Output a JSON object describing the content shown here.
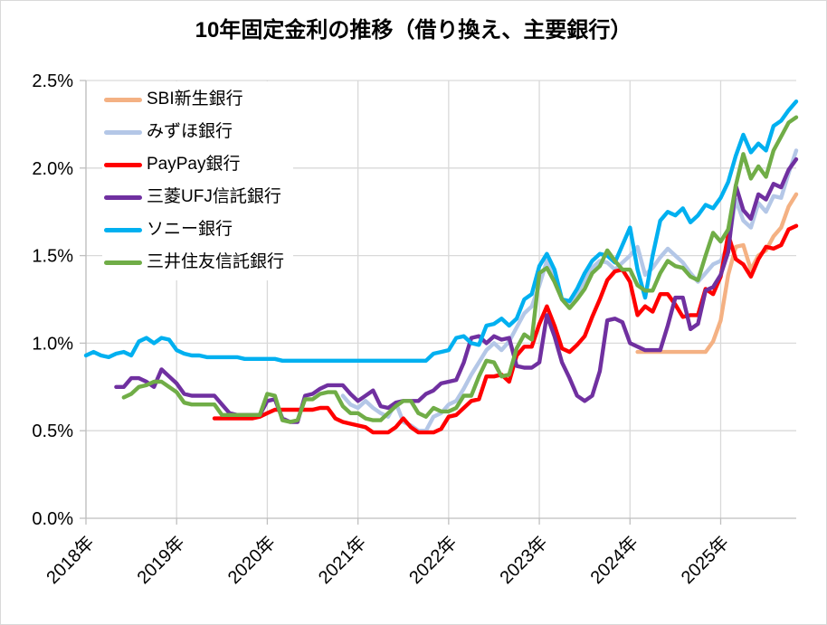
{
  "title": "10年固定金利の推移（借り換え、主要銀行）",
  "chart_data": {
    "type": "line",
    "title": "10年固定金利の推移（借り換え、主要銀行）",
    "x_unit": "month",
    "x_start": "2018-01",
    "x_end": "2025-11",
    "x_tick_labels": [
      "2018年",
      "2019年",
      "2020年",
      "2021年",
      "2022年",
      "2023年",
      "2024年",
      "2025年"
    ],
    "y_tick_labels": [
      "0.0%",
      "0.5%",
      "1.0%",
      "1.5%",
      "2.0%",
      "2.5%"
    ],
    "ylim": [
      0,
      2.5
    ],
    "y_step": 0.5,
    "grid": true,
    "legend_position": "upper-left-inside",
    "colors": {
      "grid": "#d9d9d9",
      "axis": "#bfbfbf",
      "text": "#000000"
    },
    "series": [
      {
        "name": "SBI新生銀行",
        "color": "#F4B183",
        "start_month": "2024-02",
        "values": [
          0.95,
          0.95,
          0.95,
          0.95,
          0.95,
          0.95,
          0.95,
          0.95,
          0.95,
          0.95,
          1.01,
          1.13,
          1.39,
          1.55,
          1.56,
          1.42,
          1.5,
          1.53,
          1.61,
          1.66,
          1.78,
          1.85
        ]
      },
      {
        "name": "みずほ銀行",
        "color": "#B4C7E7",
        "start_month": "2020-11",
        "values": [
          0.7,
          0.65,
          0.63,
          0.67,
          0.63,
          0.6,
          0.58,
          0.66,
          0.55,
          0.53,
          0.5,
          0.5,
          0.58,
          0.6,
          0.65,
          0.67,
          0.74,
          0.82,
          0.89,
          0.96,
          1.0,
          0.96,
          1.01,
          1.09,
          1.17,
          1.21,
          1.33,
          1.47,
          1.38,
          1.25,
          1.22,
          1.28,
          1.36,
          1.43,
          1.47,
          1.46,
          1.42,
          1.46,
          1.5,
          1.55,
          1.39,
          1.43,
          1.49,
          1.54,
          1.5,
          1.46,
          1.4,
          1.35,
          1.4,
          1.45,
          1.47,
          1.56,
          1.82,
          1.7,
          1.66,
          1.8,
          1.75,
          1.84,
          1.83,
          1.97,
          2.1
        ]
      },
      {
        "name": "PayPay銀行",
        "color": "#FF0000",
        "start_month": "2019-06",
        "values": [
          0.57,
          0.57,
          0.57,
          0.57,
          0.57,
          0.57,
          0.58,
          0.6,
          0.62,
          0.62,
          0.62,
          0.62,
          0.62,
          0.62,
          0.63,
          0.63,
          0.57,
          0.55,
          0.54,
          0.53,
          0.52,
          0.49,
          0.49,
          0.49,
          0.52,
          0.57,
          0.52,
          0.49,
          0.49,
          0.49,
          0.51,
          0.58,
          0.59,
          0.63,
          0.67,
          0.68,
          0.81,
          0.81,
          0.82,
          0.78,
          0.93,
          0.98,
          0.98,
          1.11,
          1.21,
          1.1,
          0.97,
          0.95,
          0.99,
          1.04,
          1.15,
          1.25,
          1.36,
          1.41,
          1.42,
          1.35,
          1.16,
          1.21,
          1.18,
          1.28,
          1.28,
          1.22,
          1.15,
          1.16,
          1.16,
          1.31,
          1.28,
          1.38,
          1.62,
          1.48,
          1.45,
          1.38,
          1.48,
          1.55,
          1.54,
          1.56,
          1.65,
          1.67
        ]
      },
      {
        "name": "三菱UFJ信託銀行",
        "color": "#7030A0",
        "start_month": "2018-05",
        "values": [
          0.75,
          0.75,
          0.8,
          0.8,
          0.78,
          0.75,
          0.85,
          0.81,
          0.77,
          0.71,
          0.7,
          0.7,
          0.7,
          0.7,
          0.65,
          0.6,
          0.59,
          0.59,
          0.59,
          0.59,
          0.67,
          0.68,
          0.57,
          0.55,
          0.55,
          0.7,
          0.71,
          0.74,
          0.76,
          0.76,
          0.76,
          0.71,
          0.67,
          0.7,
          0.73,
          0.64,
          0.63,
          0.66,
          0.67,
          0.67,
          0.67,
          0.71,
          0.73,
          0.77,
          0.78,
          0.79,
          0.89,
          1.03,
          1.04,
          1.0,
          1.04,
          1.02,
          1.03,
          0.87,
          0.86,
          0.86,
          0.89,
          1.16,
          1.04,
          0.89,
          0.8,
          0.7,
          0.67,
          0.7,
          0.84,
          1.13,
          1.14,
          1.12,
          1.0,
          0.98,
          0.96,
          0.96,
          0.96,
          1.1,
          1.26,
          1.26,
          1.08,
          1.11,
          1.3,
          1.32,
          1.39,
          1.52,
          1.9,
          1.76,
          1.71,
          1.85,
          1.82,
          1.91,
          1.89,
          1.99,
          2.05
        ]
      },
      {
        "name": "ソニー銀行",
        "color": "#00B0F0",
        "start_month": "2018-01",
        "values": [
          0.93,
          0.95,
          0.93,
          0.92,
          0.94,
          0.95,
          0.93,
          1.01,
          1.03,
          1.0,
          1.03,
          1.02,
          0.96,
          0.94,
          0.93,
          0.93,
          0.92,
          0.92,
          0.92,
          0.92,
          0.92,
          0.91,
          0.91,
          0.91,
          0.91,
          0.91,
          0.9,
          0.9,
          0.9,
          0.9,
          0.9,
          0.9,
          0.9,
          0.9,
          0.9,
          0.9,
          0.9,
          0.9,
          0.9,
          0.9,
          0.9,
          0.9,
          0.9,
          0.9,
          0.9,
          0.9,
          0.94,
          0.95,
          0.96,
          1.03,
          1.04,
          1.0,
          0.99,
          1.1,
          1.11,
          1.14,
          1.1,
          1.14,
          1.25,
          1.28,
          1.44,
          1.51,
          1.42,
          1.25,
          1.24,
          1.31,
          1.4,
          1.47,
          1.51,
          1.5,
          1.46,
          1.56,
          1.66,
          1.42,
          1.26,
          1.5,
          1.7,
          1.75,
          1.73,
          1.77,
          1.69,
          1.73,
          1.79,
          1.77,
          1.83,
          1.92,
          2.07,
          2.19,
          2.09,
          2.14,
          2.1,
          2.24,
          2.27,
          2.33,
          2.38
        ]
      },
      {
        "name": "三井住友信託銀行",
        "color": "#70AD47",
        "start_month": "2018-06",
        "values": [
          0.69,
          0.71,
          0.75,
          0.76,
          0.78,
          0.78,
          0.75,
          0.72,
          0.66,
          0.65,
          0.65,
          0.65,
          0.65,
          0.59,
          0.59,
          0.59,
          0.59,
          0.59,
          0.59,
          0.71,
          0.7,
          0.56,
          0.55,
          0.56,
          0.68,
          0.68,
          0.71,
          0.72,
          0.72,
          0.64,
          0.6,
          0.6,
          0.57,
          0.56,
          0.56,
          0.6,
          0.64,
          0.67,
          0.67,
          0.6,
          0.58,
          0.63,
          0.61,
          0.61,
          0.63,
          0.7,
          0.7,
          0.81,
          0.9,
          0.89,
          0.81,
          0.82,
          0.97,
          1.05,
          1.02,
          1.4,
          1.43,
          1.35,
          1.25,
          1.2,
          1.25,
          1.31,
          1.4,
          1.44,
          1.53,
          1.47,
          1.42,
          1.42,
          1.33,
          1.3,
          1.3,
          1.4,
          1.47,
          1.44,
          1.43,
          1.38,
          1.36,
          1.5,
          1.63,
          1.58,
          1.65,
          1.9,
          2.08,
          1.94,
          2.01,
          1.95,
          2.1,
          2.18,
          2.26,
          2.29
        ]
      }
    ]
  }
}
